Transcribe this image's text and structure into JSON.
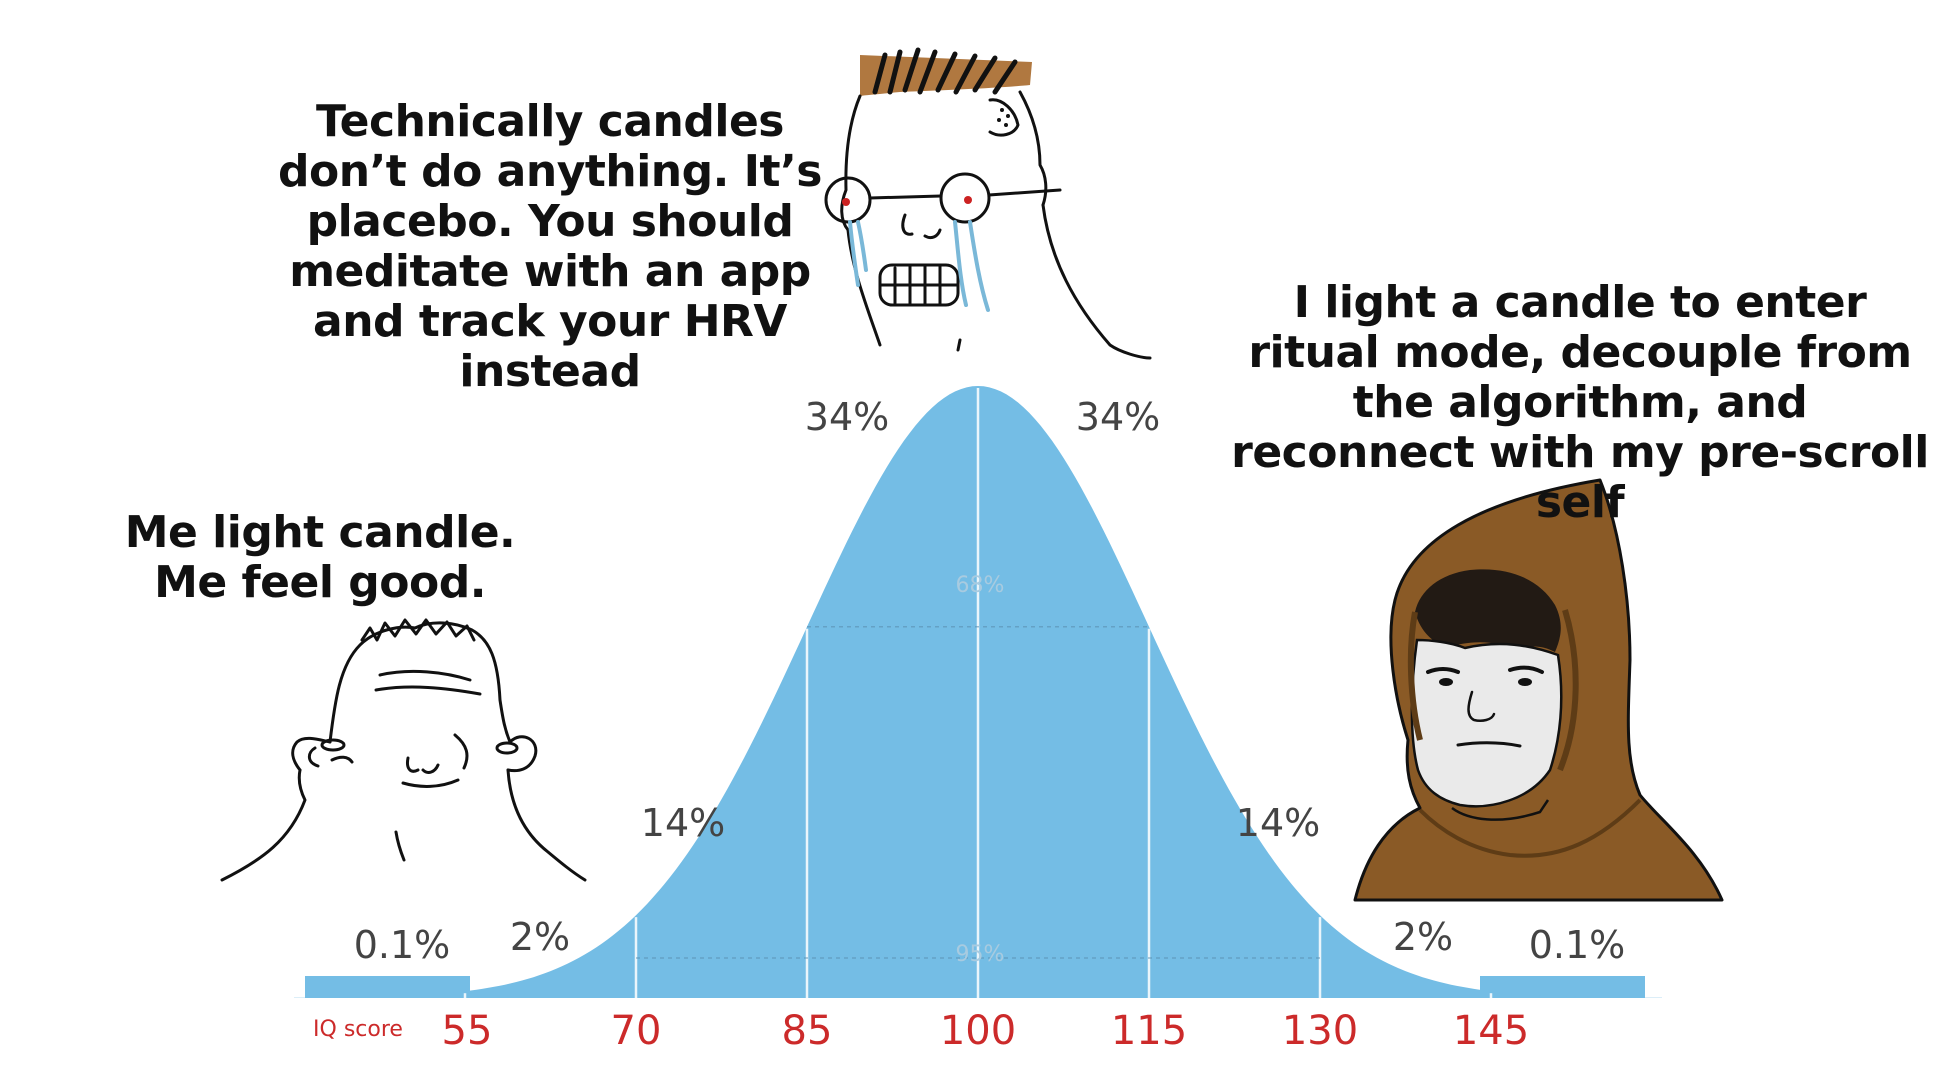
{
  "captions": {
    "left": "Me light candle. Me feel good.",
    "middle": "Technically candles don’t do anything. It’s placebo. You should meditate with an app and track your HRV instead",
    "right": "I light a candle to enter ritual mode, decouple from the algorithm, and reconnect with my pre-scroll self"
  },
  "characters": {
    "left": "wojak-simple-face-icon",
    "middle": "crying-glasses-wojak-icon",
    "right": "hooded-monk-wojak-icon"
  },
  "chart_data": {
    "type": "area",
    "title": "",
    "xlabel": "IQ score",
    "ylabel": "",
    "x_ticks": [
      55,
      70,
      85,
      100,
      115,
      130,
      145
    ],
    "distribution": {
      "mean": 100,
      "sd": 15
    },
    "segment_labels": [
      "0.1%",
      "2%",
      "14%",
      "34%",
      "34%",
      "14%",
      "2%",
      "0.1%"
    ],
    "range_labels": [
      "68%",
      "95%"
    ],
    "colors": {
      "fill": "#74bde5",
      "tick_labels": "#cc2a2a",
      "axis_label": "#cc2a2a",
      "percent_labels": "#444444"
    }
  }
}
